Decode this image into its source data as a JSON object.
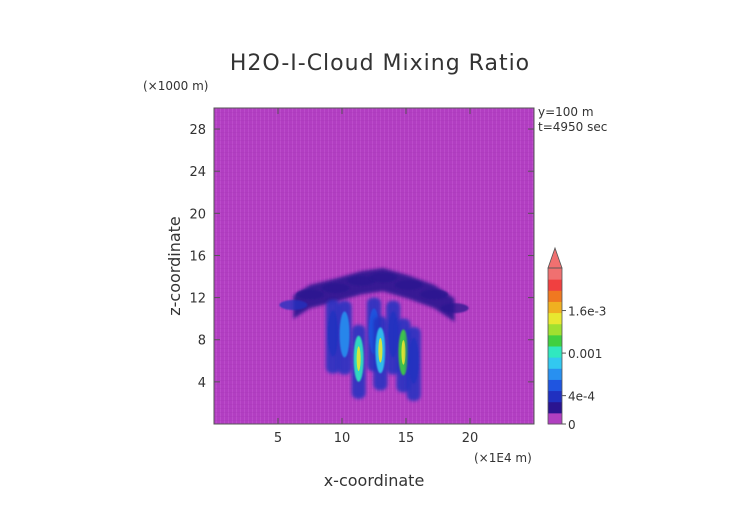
{
  "chart_data": {
    "type": "heatmap",
    "title": "H2O-I-Cloud Mixing Ratio",
    "xlabel": "x-coordinate",
    "ylabel": "z-coordinate",
    "x_scale_label": "(×1E4 m)",
    "y_scale_label": "(×1000 m)",
    "annotations": [
      "y=100 m",
      "t=4950 sec"
    ],
    "xlim": [
      0,
      25
    ],
    "ylim": [
      0,
      30
    ],
    "x_ticks": [
      5,
      10,
      15,
      20
    ],
    "x_tick_labels": [
      "5",
      "10",
      "15",
      "20"
    ],
    "y_ticks": [
      4,
      8,
      12,
      16,
      20,
      24,
      28
    ],
    "y_tick_labels": [
      "4",
      "8",
      "12",
      "16",
      "20",
      "24",
      "28"
    ],
    "colorbar": {
      "range": [
        0,
        0.0022
      ],
      "tick_values": [
        0,
        0.0004,
        0.001,
        0.0016
      ],
      "tick_labels": [
        "0",
        "4e-4",
        "0.001",
        "1.6e-3"
      ],
      "colors": [
        "#b03fc0",
        "#2a1490",
        "#2030c0",
        "#1f55e0",
        "#2890f0",
        "#32c8f0",
        "#30e8c0",
        "#40d040",
        "#a0e030",
        "#e8e830",
        "#f0b020",
        "#f07820",
        "#f04040",
        "#f07070"
      ],
      "extend_max": true
    },
    "background_value": 0,
    "cloud": {
      "anvil": [
        {
          "x": 6.2,
          "z": 11.3,
          "value": 0.00035
        },
        {
          "x": 7.5,
          "z": 12.3,
          "value": 0.0003
        },
        {
          "x": 9.5,
          "z": 12.9,
          "value": 0.00028
        },
        {
          "x": 11.5,
          "z": 13.6,
          "value": 0.0003
        },
        {
          "x": 13.2,
          "z": 13.9,
          "value": 0.00032
        },
        {
          "x": 15.2,
          "z": 13.2,
          "value": 0.0003
        },
        {
          "x": 17.2,
          "z": 12.3,
          "value": 0.00028
        },
        {
          "x": 18.8,
          "z": 11.0,
          "value": 0.00025
        }
      ],
      "columns": [
        {
          "x": 9.3,
          "z": 8.6,
          "value": 0.0004
        },
        {
          "x": 10.2,
          "z": 8.5,
          "value": 0.0008
        },
        {
          "x": 11.3,
          "z": 6.2,
          "value": 0.0011
        },
        {
          "x": 12.5,
          "z": 8.8,
          "value": 0.0006
        },
        {
          "x": 13.0,
          "z": 7.0,
          "value": 0.0009
        },
        {
          "x": 14.0,
          "z": 8.5,
          "value": 0.0005
        },
        {
          "x": 14.8,
          "z": 6.8,
          "value": 0.0012
        },
        {
          "x": 15.6,
          "z": 6.0,
          "value": 0.0004
        }
      ]
    }
  }
}
